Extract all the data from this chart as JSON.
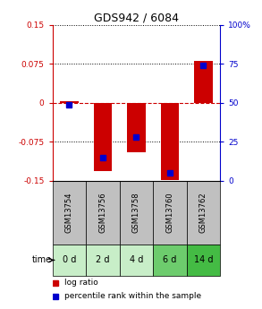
{
  "title": "GDS942 / 6084",
  "samples": [
    "GSM13754",
    "GSM13756",
    "GSM13758",
    "GSM13760",
    "GSM13762"
  ],
  "time_labels": [
    "0 d",
    "2 d",
    "4 d",
    "6 d",
    "14 d"
  ],
  "log_ratios": [
    0.003,
    -0.131,
    -0.095,
    -0.148,
    0.081
  ],
  "percentile_ranks": [
    49,
    15,
    28,
    5,
    74
  ],
  "ylim_left": [
    -0.15,
    0.15
  ],
  "ylim_right": [
    0,
    100
  ],
  "yticks_left": [
    -0.15,
    -0.075,
    0,
    0.075,
    0.15
  ],
  "ytick_labels_left": [
    "-0.15",
    "-0.075",
    "0",
    "0.075",
    "0.15"
  ],
  "yticks_right": [
    0,
    25,
    50,
    75,
    100
  ],
  "ytick_labels_right": [
    "0",
    "25",
    "50",
    "75",
    "100%"
  ],
  "red_color": "#cc0000",
  "blue_color": "#0000cc",
  "bar_width": 0.55,
  "bg_color": "#ffffff",
  "sample_bg": "#c0c0c0",
  "time_bg_colors": [
    "#c8eec8",
    "#c8eec8",
    "#c8eec8",
    "#6dcc6d",
    "#44bb44"
  ],
  "legend_log_ratio": "log ratio",
  "legend_percentile": "percentile rank within the sample",
  "time_label": "time"
}
